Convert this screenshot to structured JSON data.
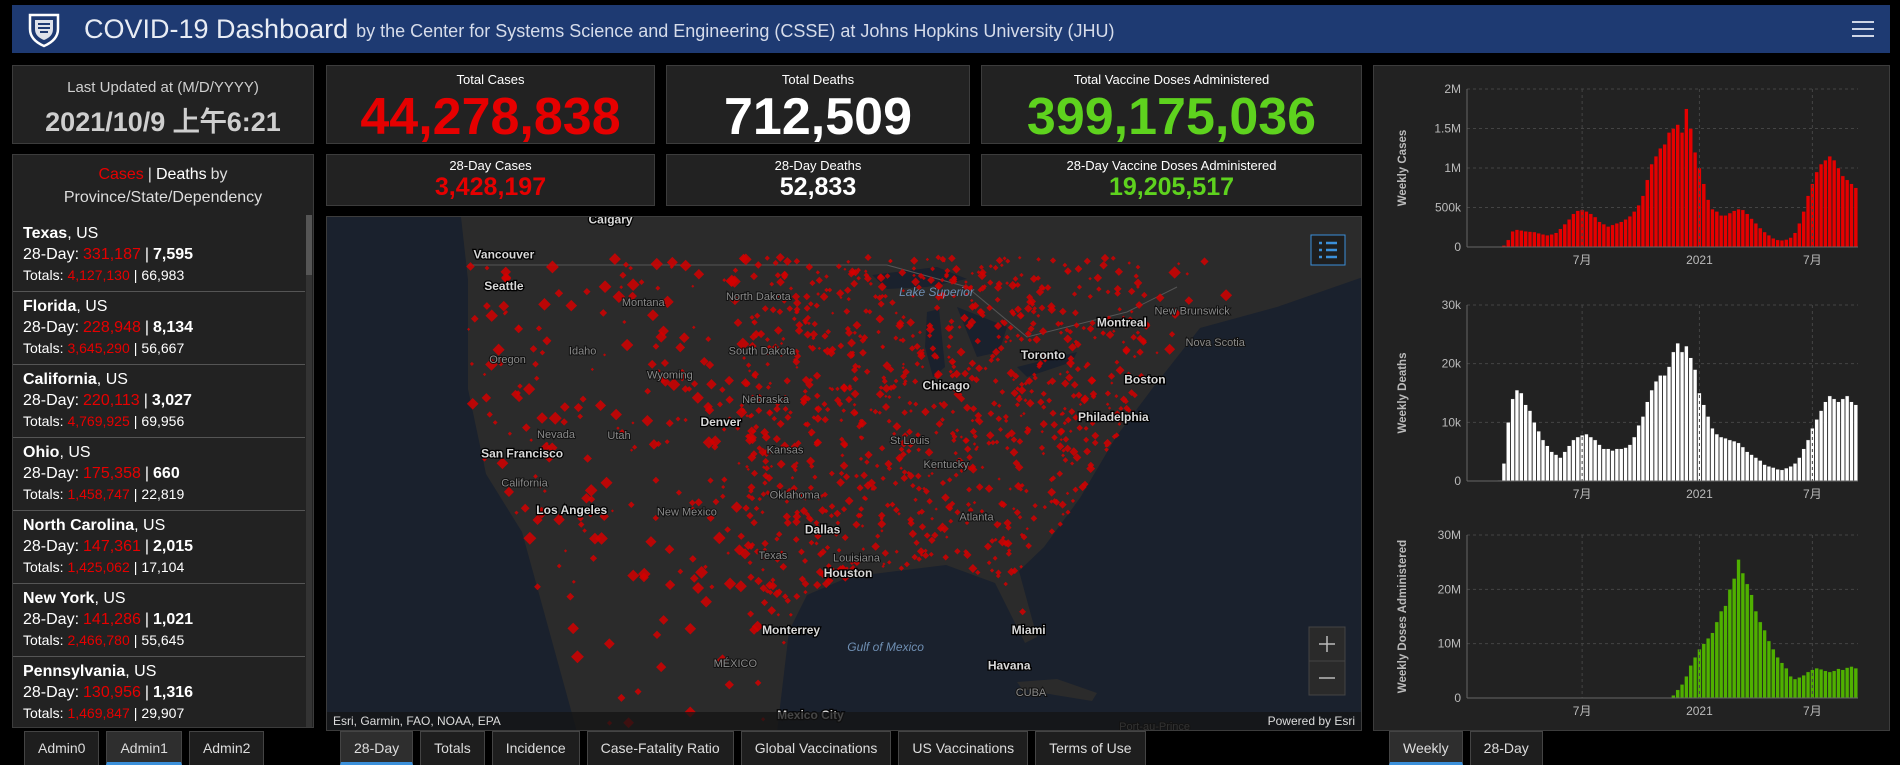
{
  "header": {
    "title": "COVID-19 Dashboard",
    "subtitle": "by the Center for Systems Science and Engineering (CSSE) at Johns Hopkins University (JHU)"
  },
  "last_updated": {
    "label": "Last Updated at (M/D/YYYY)",
    "value": "2021/10/9 上午6:21"
  },
  "stats": {
    "total_cases": {
      "label": "Total Cases",
      "value": "44,278,838"
    },
    "total_deaths": {
      "label": "Total Deaths",
      "value": "712,509"
    },
    "total_vaccine": {
      "label": "Total Vaccine Doses Administered",
      "value": "399,175,036"
    },
    "day28_cases": {
      "label": "28-Day Cases",
      "value": "3,428,197"
    },
    "day28_deaths": {
      "label": "28-Day Deaths",
      "value": "52,833"
    },
    "day28_vaccine": {
      "label": "28-Day Vaccine Doses Administered",
      "value": "19,205,517"
    }
  },
  "list": {
    "header": {
      "cases": "Cases",
      "deaths": "Deaths",
      "by": "by",
      "scope": "Province/State/Dependency"
    },
    "separator": "|",
    "row_labels": {
      "day28": "28-Day:",
      "totals": "Totals:"
    },
    "items": [
      {
        "name": "Texas",
        "suffix": ", US",
        "day28_cases": "331,187",
        "day28_deaths": "7,595",
        "total_cases": "4,127,130",
        "total_deaths": "66,983"
      },
      {
        "name": "Florida",
        "suffix": ", US",
        "day28_cases": "228,948",
        "day28_deaths": "8,134",
        "total_cases": "3,645,290",
        "total_deaths": "56,667"
      },
      {
        "name": "California",
        "suffix": ", US",
        "day28_cases": "220,113",
        "day28_deaths": "3,027",
        "total_cases": "4,769,925",
        "total_deaths": "69,956"
      },
      {
        "name": "Ohio",
        "suffix": ", US",
        "day28_cases": "175,358",
        "day28_deaths": "660",
        "total_cases": "1,458,747",
        "total_deaths": "22,819"
      },
      {
        "name": "North Carolina",
        "suffix": ", US",
        "day28_cases": "147,361",
        "day28_deaths": "2,015",
        "total_cases": "1,425,062",
        "total_deaths": "17,104"
      },
      {
        "name": "New York",
        "suffix": ", US",
        "day28_cases": "141,286",
        "day28_deaths": "1,021",
        "total_cases": "2,466,780",
        "total_deaths": "55,645"
      },
      {
        "name": "Pennsylvania",
        "suffix": ", US",
        "day28_cases": "130,956",
        "day28_deaths": "1,316",
        "total_cases": "1,469,847",
        "total_deaths": "29,907"
      }
    ]
  },
  "map": {
    "labels": [
      "Calgary",
      "Vancouver",
      "Seattle",
      "Montana",
      "North Dakota",
      "Lake Superior",
      "Montreal",
      "New Brunswick",
      "Nova Scotia",
      "Toronto",
      "Boston",
      "Oregon",
      "Idaho",
      "South Dakota",
      "Wyoming",
      "Nebraska",
      "Denver",
      "Chicago",
      "Philadelphia",
      "Nevada",
      "Utah",
      "San Francisco",
      "Kansas",
      "California",
      "Los Angeles",
      "New Mexico",
      "Oklahoma",
      "Dallas",
      "Texas",
      "Houston",
      "Louisiana",
      "Monterrey",
      "Gulf of Mexico",
      "Miami",
      "Havana",
      "CUBA",
      "MÉXICO",
      "Mexico City",
      "Port-au-Prince",
      "St Louis",
      "Kentucky",
      "Atlanta"
    ],
    "attribution": "Esri, Garmin, FAO, NOAA, EPA",
    "powered": "Powered by Esri"
  },
  "tabs": {
    "left": [
      "Admin0",
      "Admin1",
      "Admin2"
    ],
    "middle": [
      "28-Day",
      "Totals",
      "Incidence",
      "Case-Fatality Ratio",
      "Global Vaccinations",
      "US Vaccinations",
      "Terms of Use"
    ],
    "right": [
      "Weekly",
      "28-Day"
    ]
  },
  "chart_data": [
    {
      "type": "bar",
      "ylabel": "Weekly Cases",
      "color": "#e60000",
      "grid": true,
      "ylim": [
        0,
        2000000
      ],
      "yticks": [
        0,
        {
          "value": 500000,
          "label": "500k"
        },
        {
          "value": 1000000,
          "label": "1M"
        },
        {
          "value": 1500000,
          "label": "1.5M"
        },
        {
          "value": 2000000,
          "label": "2M"
        }
      ],
      "categories": [
        null,
        null,
        null,
        null,
        null,
        null,
        null,
        null,
        null,
        null,
        null,
        null,
        null,
        null,
        null,
        null,
        null,
        null,
        null,
        null,
        null,
        null,
        null,
        null,
        null,
        null,
        "7月",
        null,
        null,
        null,
        null,
        null,
        null,
        null,
        null,
        null,
        null,
        null,
        null,
        null,
        null,
        null,
        null,
        null,
        null,
        null,
        null,
        null,
        null,
        null,
        null,
        null,
        null,
        "2021",
        null,
        null,
        null,
        null,
        null,
        null,
        null,
        null,
        null,
        null,
        null,
        null,
        null,
        null,
        null,
        null,
        null,
        null,
        null,
        null,
        null,
        null,
        null,
        null,
        null,
        "7月",
        null,
        null,
        null,
        null,
        null,
        null,
        null,
        null,
        null,
        null
      ],
      "values": [
        0,
        0,
        0,
        0,
        0,
        0,
        100,
        2000,
        20000,
        90000,
        200000,
        220000,
        210000,
        200000,
        195000,
        190000,
        175000,
        160000,
        150000,
        160000,
        180000,
        230000,
        290000,
        350000,
        420000,
        460000,
        470000,
        450000,
        420000,
        380000,
        320000,
        290000,
        260000,
        280000,
        300000,
        320000,
        350000,
        390000,
        450000,
        530000,
        650000,
        850000,
        1050000,
        1150000,
        1250000,
        1300000,
        1450000,
        1500000,
        1550000,
        1450000,
        1750000,
        1500000,
        1200000,
        1000000,
        800000,
        600000,
        480000,
        450000,
        400000,
        400000,
        430000,
        460000,
        480000,
        470000,
        420000,
        360000,
        300000,
        240000,
        190000,
        150000,
        110000,
        90000,
        85000,
        95000,
        120000,
        180000,
        300000,
        450000,
        650000,
        800000,
        950000,
        1050000,
        1100000,
        1150000,
        1100000,
        1000000,
        900000,
        850000,
        800000,
        750000
      ]
    },
    {
      "type": "bar",
      "ylabel": "Weekly Deaths",
      "color": "#ffffff",
      "grid": true,
      "ylim": [
        0,
        30000
      ],
      "yticks": [
        0,
        {
          "value": 10000,
          "label": "10k"
        },
        {
          "value": 20000,
          "label": "20k"
        },
        {
          "value": 30000,
          "label": "30k"
        }
      ],
      "categories": [
        null,
        null,
        null,
        null,
        null,
        null,
        null,
        null,
        null,
        null,
        null,
        null,
        null,
        null,
        null,
        null,
        null,
        null,
        null,
        null,
        null,
        null,
        null,
        null,
        null,
        null,
        "7月",
        null,
        null,
        null,
        null,
        null,
        null,
        null,
        null,
        null,
        null,
        null,
        null,
        null,
        null,
        null,
        null,
        null,
        null,
        null,
        null,
        null,
        null,
        null,
        null,
        null,
        null,
        "2021",
        null,
        null,
        null,
        null,
        null,
        null,
        null,
        null,
        null,
        null,
        null,
        null,
        null,
        null,
        null,
        null,
        null,
        null,
        null,
        null,
        null,
        null,
        null,
        null,
        null,
        "7月",
        null,
        null,
        null,
        null,
        null,
        null,
        null,
        null,
        null,
        null
      ],
      "values": [
        0,
        0,
        0,
        0,
        0,
        0,
        0,
        100,
        3000,
        10000,
        14000,
        15500,
        15000,
        13000,
        12000,
        10000,
        8500,
        7000,
        6000,
        5000,
        4500,
        4000,
        5000,
        6000,
        7000,
        7500,
        7800,
        8000,
        7500,
        7000,
        6200,
        5500,
        5500,
        5200,
        5500,
        5500,
        5700,
        6200,
        7500,
        9500,
        11000,
        13500,
        15500,
        17000,
        18000,
        18000,
        19500,
        22000,
        23500,
        22000,
        23000,
        21000,
        19000,
        15000,
        13000,
        11000,
        9000,
        8000,
        7500,
        7300,
        7000,
        6800,
        6500,
        5800,
        5000,
        4500,
        4000,
        3500,
        2800,
        2500,
        2300,
        2000,
        1900,
        2200,
        2500,
        3000,
        4000,
        5500,
        7000,
        9000,
        10500,
        12000,
        13500,
        14500,
        14000,
        13500,
        14000,
        14500,
        13500,
        13000
      ]
    },
    {
      "type": "bar",
      "ylabel": "Weekly Doses Administered",
      "color": "#4fb000",
      "grid": true,
      "ylim": [
        0,
        30000000
      ],
      "yticks": [
        0,
        {
          "value": 10000000,
          "label": "10M"
        },
        {
          "value": 20000000,
          "label": "20M"
        },
        {
          "value": 30000000,
          "label": "30M"
        }
      ],
      "categories": [
        null,
        null,
        null,
        null,
        null,
        null,
        null,
        null,
        null,
        null,
        null,
        null,
        null,
        null,
        null,
        null,
        null,
        null,
        null,
        null,
        null,
        null,
        null,
        null,
        null,
        null,
        "7月",
        null,
        null,
        null,
        null,
        null,
        null,
        null,
        null,
        null,
        null,
        null,
        null,
        null,
        null,
        null,
        null,
        null,
        null,
        null,
        null,
        null,
        null,
        null,
        null,
        null,
        null,
        "2021",
        null,
        null,
        null,
        null,
        null,
        null,
        null,
        null,
        null,
        null,
        null,
        null,
        null,
        null,
        null,
        null,
        null,
        null,
        null,
        null,
        null,
        null,
        null,
        null,
        null,
        "7月",
        null,
        null,
        null,
        null,
        null,
        null,
        null,
        null,
        null,
        null
      ],
      "values": [
        0,
        0,
        0,
        0,
        0,
        0,
        0,
        0,
        0,
        0,
        0,
        0,
        0,
        0,
        0,
        0,
        0,
        0,
        0,
        0,
        0,
        0,
        0,
        0,
        0,
        0,
        0,
        0,
        0,
        0,
        0,
        0,
        0,
        0,
        0,
        0,
        0,
        0,
        0,
        0,
        0,
        0,
        0,
        0,
        0,
        0,
        0,
        500000,
        1500000,
        2500000,
        4000000,
        6000000,
        7500000,
        9000000,
        10000000,
        11000000,
        12000000,
        14000000,
        16000000,
        17000000,
        20000000,
        22000000,
        25500000,
        23000000,
        21000000,
        19000000,
        16000000,
        14000000,
        12500000,
        10500000,
        9000000,
        7500000,
        6500000,
        5500000,
        4000000,
        3500000,
        3800000,
        4200000,
        4800000,
        5200000,
        5500000,
        5300000,
        5000000,
        4800000,
        5000000,
        5400000,
        5200000,
        5600000,
        5800000,
        5500000
      ]
    }
  ]
}
